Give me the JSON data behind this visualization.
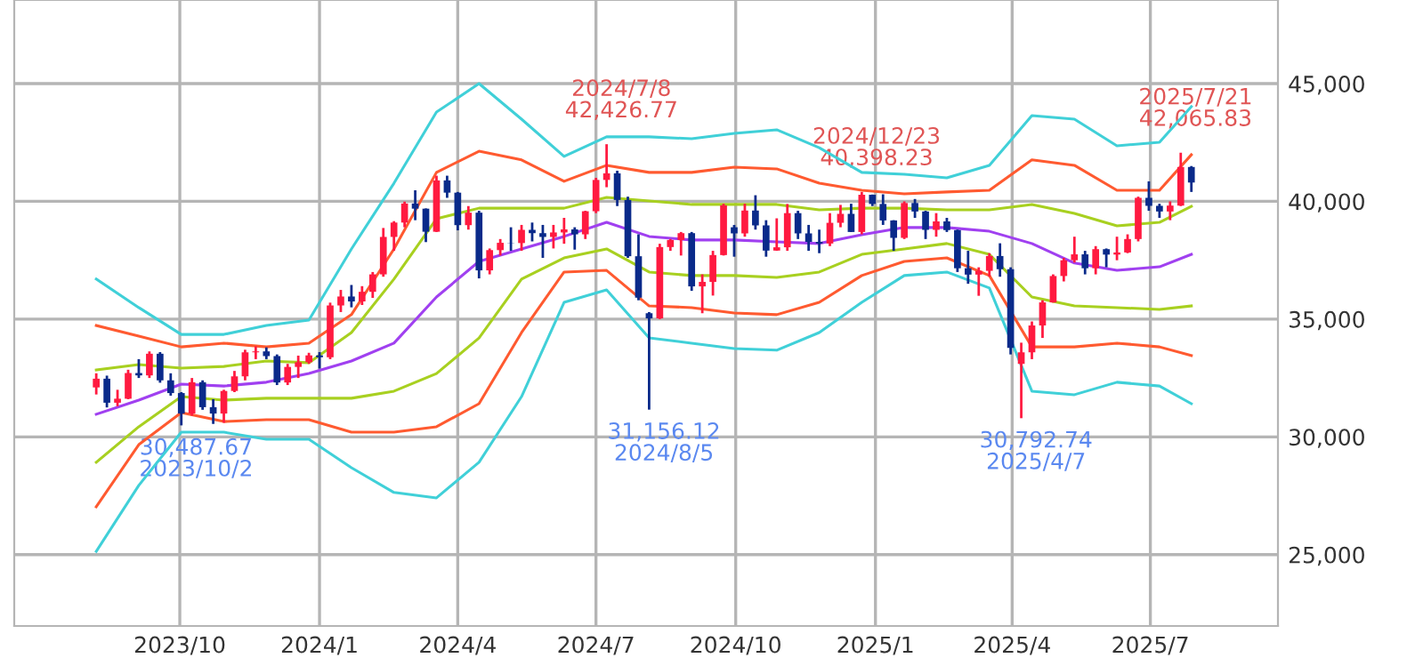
{
  "chart_data": {
    "type": "candlestick",
    "x": [
      "2023-08-07",
      "2023-08-14",
      "2023-08-21",
      "2023-08-28",
      "2023-09-04",
      "2023-09-11",
      "2023-09-18",
      "2023-09-25",
      "2023-10-02",
      "2023-10-09",
      "2023-10-16",
      "2023-10-23",
      "2023-10-30",
      "2023-11-06",
      "2023-11-13",
      "2023-11-20",
      "2023-11-27",
      "2023-12-04",
      "2023-12-11",
      "2023-12-18",
      "2023-12-25",
      "2024-01-01",
      "2024-01-08",
      "2024-01-15",
      "2024-01-22",
      "2024-01-29",
      "2024-02-05",
      "2024-02-12",
      "2024-02-19",
      "2024-02-26",
      "2024-03-04",
      "2024-03-11",
      "2024-03-18",
      "2024-03-25",
      "2024-04-01",
      "2024-04-08",
      "2024-04-15",
      "2024-04-22",
      "2024-04-29",
      "2024-05-06",
      "2024-05-13",
      "2024-05-20",
      "2024-05-27",
      "2024-06-03",
      "2024-06-10",
      "2024-06-17",
      "2024-06-24",
      "2024-07-01",
      "2024-07-08",
      "2024-07-15",
      "2024-07-22",
      "2024-07-29",
      "2024-08-05",
      "2024-08-12",
      "2024-08-19",
      "2024-08-26",
      "2024-09-02",
      "2024-09-09",
      "2024-09-16",
      "2024-09-23",
      "2024-09-30",
      "2024-10-07",
      "2024-10-14",
      "2024-10-21",
      "2024-10-28",
      "2024-11-04",
      "2024-11-11",
      "2024-11-18",
      "2024-11-25",
      "2024-12-02",
      "2024-12-09",
      "2024-12-16",
      "2024-12-23",
      "2024-12-30",
      "2025-01-06",
      "2025-01-13",
      "2025-01-20",
      "2025-01-27",
      "2025-02-03",
      "2025-02-10",
      "2025-02-17",
      "2025-02-24",
      "2025-03-03",
      "2025-03-10",
      "2025-03-17",
      "2025-03-24",
      "2025-03-31",
      "2025-04-07",
      "2025-04-14",
      "2025-04-21",
      "2025-04-28",
      "2025-05-05",
      "2025-05-12",
      "2025-05-19",
      "2025-05-26",
      "2025-06-02",
      "2025-06-09",
      "2025-06-16",
      "2025-06-23",
      "2025-06-30",
      "2025-07-07",
      "2025-07-14",
      "2025-07-21",
      "2025-07-28"
    ],
    "ohlc": [
      [
        32100,
        32700,
        31800,
        32470
      ],
      [
        32470,
        32600,
        31250,
        31450
      ],
      [
        31450,
        32000,
        31300,
        31620
      ],
      [
        31620,
        32850,
        31600,
        32710
      ],
      [
        32710,
        33300,
        32500,
        32610
      ],
      [
        32610,
        33630,
        32500,
        33530
      ],
      [
        33530,
        33600,
        32300,
        32400
      ],
      [
        32400,
        32700,
        31750,
        31860
      ],
      [
        31860,
        31900,
        30487.67,
        30990
      ],
      [
        30990,
        32500,
        30900,
        32320
      ],
      [
        32320,
        32400,
        31150,
        31260
      ],
      [
        31260,
        31600,
        30550,
        30990
      ],
      [
        30990,
        32000,
        30600,
        31950
      ],
      [
        31950,
        32800,
        31900,
        32570
      ],
      [
        32570,
        33700,
        32400,
        33590
      ],
      [
        33590,
        33850,
        33300,
        33630
      ],
      [
        33630,
        33800,
        33300,
        33430
      ],
      [
        33430,
        33500,
        32200,
        32310
      ],
      [
        32310,
        33100,
        32200,
        32970
      ],
      [
        32970,
        33450,
        32500,
        33170
      ],
      [
        33170,
        33570,
        33100,
        33460
      ],
      [
        33460,
        33600,
        32900,
        33380
      ],
      [
        33380,
        35700,
        33300,
        35580
      ],
      [
        35580,
        36240,
        35300,
        35960
      ],
      [
        35960,
        36450,
        35500,
        35750
      ],
      [
        35750,
        36400,
        35600,
        36160
      ],
      [
        36160,
        37000,
        35900,
        36900
      ],
      [
        36900,
        38870,
        36800,
        38490
      ],
      [
        38490,
        39160,
        37900,
        39100
      ],
      [
        39100,
        39990,
        38900,
        39910
      ],
      [
        39910,
        40470,
        39200,
        39690
      ],
      [
        39690,
        39700,
        38270,
        38710
      ],
      [
        38710,
        41090,
        38700,
        40890
      ],
      [
        40890,
        41090,
        40150,
        40370
      ],
      [
        40370,
        40400,
        38770,
        38990
      ],
      [
        38990,
        39800,
        38800,
        39520
      ],
      [
        39520,
        39600,
        36730,
        37070
      ],
      [
        37070,
        38000,
        36900,
        37930
      ],
      [
        37930,
        38400,
        37700,
        38240
      ],
      [
        38240,
        38900,
        37900,
        38230
      ],
      [
        38230,
        39000,
        37900,
        38790
      ],
      [
        38790,
        39100,
        38300,
        38650
      ],
      [
        38650,
        39000,
        37600,
        38490
      ],
      [
        38490,
        39000,
        38000,
        38680
      ],
      [
        38680,
        39300,
        38200,
        38810
      ],
      [
        38810,
        38900,
        37950,
        38600
      ],
      [
        38600,
        39600,
        38400,
        39580
      ],
      [
        39580,
        41000,
        39500,
        40910
      ],
      [
        40910,
        42426.77,
        40600,
        41190
      ],
      [
        41190,
        41300,
        39800,
        40060
      ],
      [
        40060,
        40200,
        37600,
        37670
      ],
      [
        37670,
        38600,
        35800,
        35910
      ],
      [
        35250,
        35300,
        31156.12,
        35030
      ],
      [
        35030,
        38200,
        35000,
        38060
      ],
      [
        38060,
        38400,
        37900,
        38360
      ],
      [
        38360,
        38700,
        37700,
        38650
      ],
      [
        38650,
        38700,
        36200,
        36390
      ],
      [
        36390,
        36900,
        35250,
        36580
      ],
      [
        36580,
        37900,
        36000,
        37720
      ],
      [
        37720,
        39900,
        37700,
        39830
      ],
      [
        38900,
        39000,
        37650,
        38640
      ],
      [
        38640,
        39900,
        38500,
        39610
      ],
      [
        39610,
        40260,
        38800,
        38980
      ],
      [
        38980,
        39200,
        37650,
        37910
      ],
      [
        37910,
        39280,
        37900,
        38050
      ],
      [
        38050,
        39890,
        37900,
        39500
      ],
      [
        39500,
        39600,
        38400,
        38640
      ],
      [
        38640,
        39000,
        37900,
        38280
      ],
      [
        38280,
        38800,
        37800,
        38210
      ],
      [
        38210,
        39500,
        38100,
        39090
      ],
      [
        39090,
        39850,
        38900,
        39470
      ],
      [
        39470,
        39900,
        38700,
        38700
      ],
      [
        38700,
        40398.23,
        38600,
        40280
      ],
      [
        40280,
        40290,
        39800,
        39890
      ],
      [
        39890,
        40300,
        39000,
        39190
      ],
      [
        39190,
        39200,
        37900,
        38450
      ],
      [
        38450,
        40000,
        38400,
        39930
      ],
      [
        39930,
        40100,
        39300,
        39570
      ],
      [
        39570,
        39600,
        38400,
        38790
      ],
      [
        38790,
        39500,
        38500,
        39150
      ],
      [
        39150,
        39300,
        38700,
        38780
      ],
      [
        38780,
        38800,
        37000,
        37160
      ],
      [
        37160,
        37900,
        36500,
        36890
      ],
      [
        36890,
        37200,
        35990,
        37050
      ],
      [
        37050,
        37800,
        36800,
        37680
      ],
      [
        37680,
        38220,
        36800,
        37120
      ],
      [
        37120,
        37200,
        33500,
        33780
      ],
      [
        33100,
        34000,
        30792.74,
        33590
      ],
      [
        33590,
        34900,
        33300,
        34730
      ],
      [
        34730,
        35800,
        34200,
        35710
      ],
      [
        35710,
        36900,
        35700,
        36830
      ],
      [
        36830,
        37600,
        36600,
        37500
      ],
      [
        37500,
        38500,
        37400,
        37750
      ],
      [
        37750,
        37900,
        36900,
        37160
      ],
      [
        37160,
        38100,
        36900,
        37970
      ],
      [
        37970,
        38000,
        37200,
        37740
      ],
      [
        37740,
        38500,
        37500,
        37830
      ],
      [
        37830,
        38600,
        37800,
        38400
      ],
      [
        38400,
        40200,
        38300,
        40150
      ],
      [
        40150,
        40850,
        39600,
        39810
      ],
      [
        39810,
        39900,
        39300,
        39570
      ],
      [
        39570,
        40000,
        39200,
        39820
      ],
      [
        39820,
        42065.83,
        39800,
        41460
      ],
      [
        41460,
        41500,
        40400,
        40800
      ]
    ],
    "colors": [
      "#ff1a40",
      "#0a2a8a",
      "#ff1a40",
      "#ff1a40",
      "#0a2a8a",
      "#ff1a40",
      "#0a2a8a",
      "#0a2a8a",
      "#0a2a8a",
      "#ff1a40",
      "#0a2a8a",
      "#0a2a8a",
      "#ff1a40",
      "#ff1a40",
      "#ff1a40",
      "#ff1a40",
      "#0a2a8a",
      "#0a2a8a",
      "#ff1a40",
      "#ff1a40",
      "#ff1a40",
      "#0a2a8a",
      "#ff1a40",
      "#ff1a40",
      "#0a2a8a",
      "#ff1a40",
      "#ff1a40",
      "#ff1a40",
      "#ff1a40",
      "#ff1a40",
      "#0a2a8a",
      "#0a2a8a",
      "#ff1a40",
      "#0a2a8a",
      "#0a2a8a",
      "#ff1a40",
      "#0a2a8a",
      "#ff1a40",
      "#ff1a40",
      "#0a2a8a",
      "#ff1a40",
      "#0a2a8a",
      "#0a2a8a",
      "#ff1a40",
      "#ff1a40",
      "#0a2a8a",
      "#ff1a40",
      "#ff1a40",
      "#ff1a40",
      "#0a2a8a",
      "#0a2a8a",
      "#0a2a8a",
      "#0a2a8a",
      "#ff1a40",
      "#ff1a40",
      "#ff1a40",
      "#0a2a8a",
      "#ff1a40",
      "#ff1a40",
      "#ff1a40",
      "#0a2a8a",
      "#ff1a40",
      "#0a2a8a",
      "#0a2a8a",
      "#ff1a40",
      "#ff1a40",
      "#0a2a8a",
      "#0a2a8a",
      "#0a2a8a",
      "#ff1a40",
      "#ff1a40",
      "#0a2a8a",
      "#ff1a40",
      "#0a2a8a",
      "#0a2a8a",
      "#0a2a8a",
      "#ff1a40",
      "#0a2a8a",
      "#0a2a8a",
      "#ff1a40",
      "#0a2a8a",
      "#0a2a8a",
      "#0a2a8a",
      "#ff1a40",
      "#ff1a40",
      "#0a2a8a",
      "#0a2a8a",
      "#ff1a40",
      "#ff1a40",
      "#ff1a40",
      "#ff1a40",
      "#ff1a40",
      "#ff1a40",
      "#0a2a8a",
      "#ff1a40",
      "#0a2a8a",
      "#ff1a40",
      "#ff1a40",
      "#ff1a40",
      "#0a2a8a",
      "#0a2a8a",
      "#ff1a40",
      "#ff1a40",
      "#0a2a8a"
    ],
    "series": [
      {
        "type": "line",
        "color": "#40d0d8",
        "x": [
          "2023-08-07",
          "2023-09-04",
          "2023-10-02",
          "2023-10-30",
          "2023-11-27",
          "2023-12-25",
          "2024-01-22",
          "2024-02-19",
          "2024-03-18",
          "2024-04-15",
          "2024-05-13",
          "2024-06-10",
          "2024-07-08",
          "2024-08-05",
          "2024-09-02",
          "2024-09-30",
          "2024-10-28",
          "2024-11-25",
          "2024-12-23",
          "2025-01-20",
          "2025-02-17",
          "2025-03-17",
          "2025-04-14",
          "2025-05-12",
          "2025-06-09",
          "2025-07-07",
          "2025-07-28"
        ],
        "values": [
          36700,
          35490,
          34350,
          34350,
          34730,
          34960,
          37980,
          40770,
          43790,
          45000,
          43490,
          41910,
          42740,
          42740,
          42660,
          42890,
          43040,
          42280,
          41230,
          41150,
          41000,
          41530,
          43640,
          43490,
          42360,
          42510,
          44020
        ]
      },
      {
        "type": "line",
        "color": "#ff5a30",
        "x": [
          "2023-08-07",
          "2023-09-04",
          "2023-10-02",
          "2023-10-30",
          "2023-11-27",
          "2023-12-25",
          "2024-01-22",
          "2024-02-19",
          "2024-03-18",
          "2024-04-15",
          "2024-05-13",
          "2024-06-10",
          "2024-07-08",
          "2024-08-05",
          "2024-09-02",
          "2024-09-30",
          "2024-10-28",
          "2024-11-25",
          "2024-12-23",
          "2025-01-20",
          "2025-02-17",
          "2025-03-17",
          "2025-04-14",
          "2025-05-12",
          "2025-06-09",
          "2025-07-07",
          "2025-07-28"
        ],
        "values": [
          34730,
          34280,
          33820,
          33980,
          33820,
          33980,
          35190,
          37980,
          41230,
          42130,
          41760,
          40850,
          41530,
          41230,
          41230,
          41450,
          41380,
          40770,
          40470,
          40320,
          40400,
          40470,
          41760,
          41530,
          40470,
          40470,
          41980
        ]
      },
      {
        "type": "line",
        "color": "#a8d020",
        "x": [
          "2023-08-07",
          "2023-09-04",
          "2023-10-02",
          "2023-10-30",
          "2023-11-27",
          "2023-12-25",
          "2024-01-22",
          "2024-02-19",
          "2024-03-18",
          "2024-04-15",
          "2024-05-13",
          "2024-06-10",
          "2024-07-08",
          "2024-08-05",
          "2024-09-02",
          "2024-09-30",
          "2024-10-28",
          "2024-11-25",
          "2024-12-23",
          "2025-01-20",
          "2025-02-17",
          "2025-03-17",
          "2025-04-14",
          "2025-05-12",
          "2025-06-09",
          "2025-07-07",
          "2025-07-28"
        ],
        "values": [
          32840,
          33070,
          32920,
          32990,
          33220,
          33150,
          34430,
          36700,
          39260,
          39710,
          39710,
          39710,
          40170,
          40020,
          39870,
          39870,
          39870,
          39640,
          39710,
          39710,
          39640,
          39640,
          39870,
          39490,
          38960,
          39110,
          39790
        ]
      },
      {
        "type": "line",
        "color": "#a040f0",
        "x": [
          "2023-08-07",
          "2023-09-04",
          "2023-10-02",
          "2023-10-30",
          "2023-11-27",
          "2023-12-25",
          "2024-01-22",
          "2024-02-19",
          "2024-03-18",
          "2024-04-15",
          "2024-05-13",
          "2024-06-10",
          "2024-07-08",
          "2024-08-05",
          "2024-09-02",
          "2024-09-30",
          "2024-10-28",
          "2024-11-25",
          "2024-12-23",
          "2025-01-20",
          "2025-02-17",
          "2025-03-17",
          "2025-04-14",
          "2025-05-12",
          "2025-06-09",
          "2025-07-07",
          "2025-07-28"
        ],
        "values": [
          30960,
          31560,
          32240,
          32160,
          32320,
          32690,
          33220,
          33980,
          35940,
          37450,
          37980,
          38510,
          39110,
          38510,
          38360,
          38360,
          38280,
          38210,
          38580,
          38890,
          38890,
          38730,
          38210,
          37380,
          37070,
          37220,
          37750
        ]
      },
      {
        "type": "line",
        "color": "#a8d020",
        "x": [
          "2023-08-07",
          "2023-09-04",
          "2023-10-02",
          "2023-10-30",
          "2023-11-27",
          "2023-12-25",
          "2024-01-22",
          "2024-02-19",
          "2024-03-18",
          "2024-04-15",
          "2024-05-13",
          "2024-06-10",
          "2024-07-08",
          "2024-08-05",
          "2024-09-02",
          "2024-09-30",
          "2024-10-28",
          "2024-11-25",
          "2024-12-23",
          "2025-01-20",
          "2025-02-17",
          "2025-03-17",
          "2025-04-14",
          "2025-05-12",
          "2025-06-09",
          "2025-07-07",
          "2025-07-28"
        ],
        "values": [
          28920,
          30430,
          31710,
          31560,
          31640,
          31640,
          31640,
          31940,
          32690,
          34200,
          36700,
          37600,
          37980,
          37000,
          36850,
          36850,
          36770,
          37000,
          37750,
          37980,
          38210,
          37750,
          35940,
          35560,
          35490,
          35410,
          35560
        ]
      },
      {
        "type": "line",
        "color": "#ff5a30",
        "x": [
          "2023-08-07",
          "2023-09-04",
          "2023-10-02",
          "2023-10-30",
          "2023-11-27",
          "2023-12-25",
          "2024-01-22",
          "2024-02-19",
          "2024-03-18",
          "2024-04-15",
          "2024-05-13",
          "2024-06-10",
          "2024-07-08",
          "2024-08-05",
          "2024-09-02",
          "2024-09-30",
          "2024-10-28",
          "2024-11-25",
          "2024-12-23",
          "2025-01-20",
          "2025-02-17",
          "2025-03-17",
          "2025-04-14",
          "2025-05-12",
          "2025-06-09",
          "2025-07-07",
          "2025-07-28"
        ],
        "values": [
          27030,
          29670,
          31030,
          30650,
          30730,
          30730,
          30200,
          30200,
          30430,
          31410,
          34430,
          37000,
          37070,
          35560,
          35490,
          35260,
          35190,
          35710,
          36850,
          37450,
          37600,
          36850,
          33820,
          33820,
          33980,
          33820,
          33450
        ]
      },
      {
        "type": "line",
        "color": "#40d0d8",
        "x": [
          "2023-08-07",
          "2023-09-04",
          "2023-10-02",
          "2023-10-30",
          "2023-11-27",
          "2023-12-25",
          "2024-01-22",
          "2024-02-19",
          "2024-03-18",
          "2024-04-15",
          "2024-05-13",
          "2024-06-10",
          "2024-07-08",
          "2024-08-05",
          "2024-09-02",
          "2024-09-30",
          "2024-10-28",
          "2024-11-25",
          "2024-12-23",
          "2025-01-20",
          "2025-02-17",
          "2025-03-17",
          "2025-04-14",
          "2025-05-12",
          "2025-06-09",
          "2025-07-07",
          "2025-07-28"
        ],
        "values": [
          25140,
          27940,
          30200,
          30200,
          29900,
          29900,
          28690,
          27640,
          27410,
          28920,
          31710,
          35710,
          36240,
          34200,
          33980,
          33750,
          33680,
          34430,
          35710,
          36850,
          37000,
          36320,
          31940,
          31790,
          32320,
          32160,
          31410
        ]
      }
    ],
    "xlim": [
      "2023-06-14",
      "2025-09-23"
    ],
    "xticks": [
      {
        "value": "2023-10-01",
        "label": "2023/10"
      },
      {
        "value": "2024-01-01",
        "label": "2024/1"
      },
      {
        "value": "2024-04-01",
        "label": "2024/4"
      },
      {
        "value": "2024-07-01",
        "label": "2024/7"
      },
      {
        "value": "2024-10-01",
        "label": "2024/10"
      },
      {
        "value": "2025-01-01",
        "label": "2025/1"
      },
      {
        "value": "2025-04-01",
        "label": "2025/4"
      },
      {
        "value": "2025-07-01",
        "label": "2025/7"
      }
    ],
    "ylim": [
      21970,
      48550
    ],
    "yticks": [
      {
        "value": 25000,
        "label": "25,000"
      },
      {
        "value": 30000,
        "label": "30,000"
      },
      {
        "value": 35000,
        "label": "35,000"
      },
      {
        "value": 40000,
        "label": "40,000"
      },
      {
        "value": 45000,
        "label": "45,000"
      }
    ],
    "grid": true,
    "annotations": [
      {
        "text": "30,487.67\n2023/10/2",
        "x": "2023-10-02",
        "y": 30487.67
      },
      {
        "text": "2024/7/8\n42,426.77",
        "x": "2024-07-08",
        "y": 42426.77
      },
      {
        "text": "31,156.12\n2024/8/5",
        "x": "2024-08-05",
        "y": 31156.12
      },
      {
        "text": "2024/12/23\n40,398.23",
        "x": "2024-12-23",
        "y": 40398.23
      },
      {
        "text": "30,792.74\n2025/4/7",
        "x": "2025-04-07",
        "y": 30792.74
      },
      {
        "text": "2025/7/21\n42,065.83",
        "x": "2025-07-21",
        "y": 42065.83
      }
    ]
  }
}
